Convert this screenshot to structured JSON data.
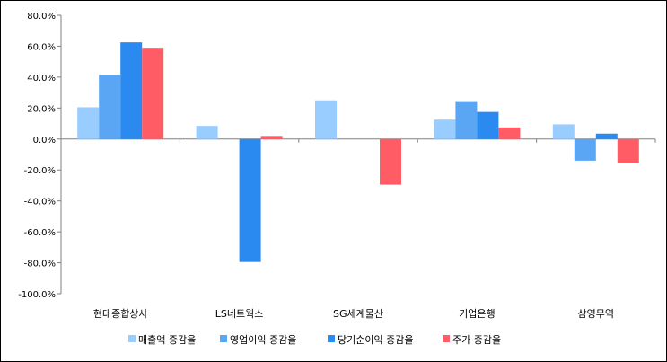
{
  "chart_data": {
    "type": "bar",
    "categories": [
      "현대종합상사",
      "LS네트웍스",
      "SG세계물산",
      "기업은행",
      "삼영무역"
    ],
    "series": [
      {
        "name": "매출액 증감율",
        "color": "#99ccff",
        "values": [
          20.5,
          8.5,
          25.0,
          12.5,
          9.5
        ]
      },
      {
        "name": "영업이익 증감율",
        "color": "#5aa6f5",
        "values": [
          41.5,
          0,
          0,
          24.5,
          -14.0
        ]
      },
      {
        "name": "당기순이익 증감율",
        "color": "#2b8af0",
        "values": [
          62.5,
          -79.5,
          0,
          17.5,
          3.5
        ]
      },
      {
        "name": "주가 증감율",
        "color": "#ff5c66",
        "values": [
          59.0,
          2.0,
          -29.5,
          7.5,
          -15.5
        ]
      }
    ],
    "ylim": [
      -100,
      80
    ],
    "yticks": [
      "-100.0%",
      "-80.0%",
      "-60.0%",
      "-40.0%",
      "-20.0%",
      "0.0%",
      "20.0%",
      "40.0%",
      "60.0%",
      "80.0%"
    ],
    "ytick_values": [
      -100,
      -80,
      -60,
      -40,
      -20,
      0,
      20,
      40,
      60,
      80
    ],
    "grid": false,
    "legend_position": "bottom"
  }
}
